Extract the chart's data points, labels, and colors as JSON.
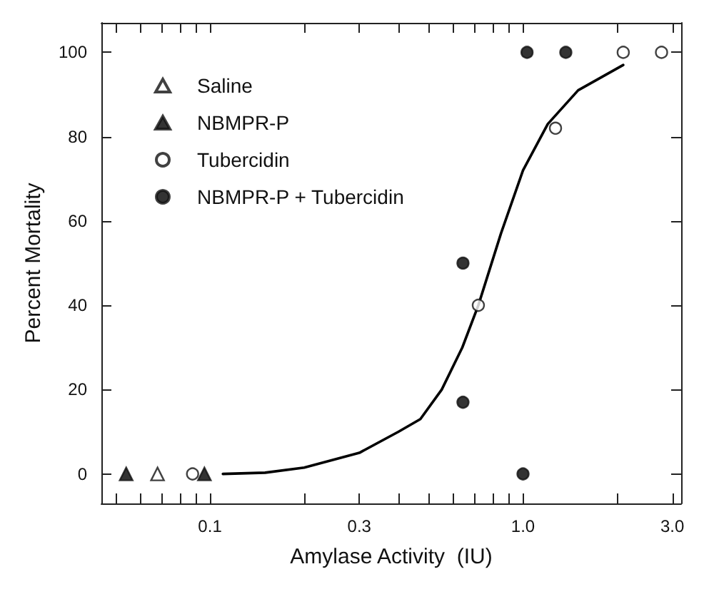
{
  "chart_data": {
    "type": "scatter",
    "xlabel": "Amylase Activity  (IU)",
    "ylabel": "Percent Mortality",
    "log": "x",
    "grid": false,
    "legend": "top left",
    "xlim": [
      0.045,
      3.2
    ],
    "xticks": [
      {
        "value": 0.05,
        "label": null
      },
      {
        "value": 0.06,
        "label": null
      },
      {
        "value": 0.07,
        "label": null
      },
      {
        "value": 0.08,
        "label": null
      },
      {
        "value": 0.09,
        "label": null
      },
      0.1,
      {
        "value": 0.2,
        "label": null
      },
      0.3,
      {
        "value": 0.4,
        "label": null
      },
      {
        "value": 0.5,
        "label": null
      },
      {
        "value": 0.6,
        "label": null
      },
      {
        "value": 0.7,
        "label": null
      },
      {
        "value": 0.8,
        "label": null
      },
      {
        "value": 0.9,
        "label": null
      },
      {
        "value": 1,
        "label": "1.0"
      },
      {
        "value": 2,
        "label": null
      },
      {
        "value": 3,
        "label": "3.0"
      }
    ],
    "ylim": [
      -7,
      107
    ],
    "yticks": [
      0,
      20,
      40,
      60,
      80,
      100
    ],
    "series": [
      {
        "name": "Saline",
        "marker": "triangle",
        "color": "#ffffff",
        "x": [
          0.068
        ],
        "values": [
          0
        ]
      },
      {
        "name": "NBMPR-P",
        "marker": "triangle",
        "color": "#000000",
        "x": [
          0.054,
          0.096
        ],
        "values": [
          0,
          0
        ]
      },
      {
        "name": "Tubercidin",
        "marker": "circle",
        "color": "#ffffff",
        "x": [
          0.088,
          0.72,
          1.27,
          2.09,
          2.77
        ],
        "values": [
          0,
          40,
          82,
          100,
          100
        ]
      },
      {
        "name": "NBMPR-P + Tubercidin",
        "marker": "circle",
        "color": "#000000",
        "x": [
          0.643,
          0.643,
          1.0,
          1.03,
          1.37
        ],
        "values": [
          17,
          50,
          0,
          100,
          100
        ]
      },
      {
        "type": "line",
        "marker": "none",
        "line_style": "solid",
        "color": "#000000",
        "x": [
          0.11,
          0.15,
          0.2,
          0.3,
          0.4,
          0.47,
          0.55,
          0.64,
          0.72,
          0.85,
          1.0,
          1.2,
          1.5,
          2.09
        ],
        "values": [
          0,
          0.3,
          1.5,
          5,
          10,
          13,
          20,
          30,
          40,
          57,
          72,
          83,
          91,
          97
        ]
      }
    ]
  }
}
